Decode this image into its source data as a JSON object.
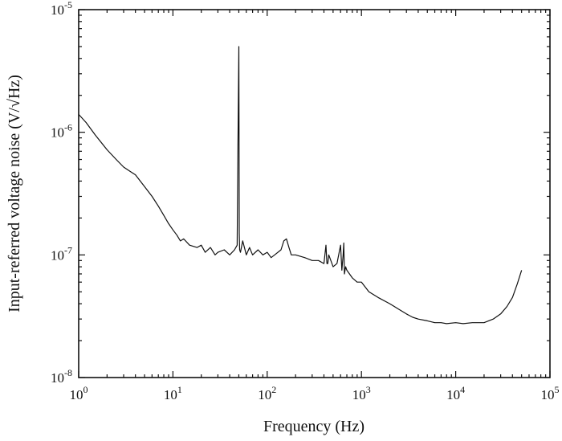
{
  "chart_data": {
    "type": "line",
    "title": "",
    "xlabel": "Frequency (Hz)",
    "ylabel": "Input-referred voltage noise (V/√Hz)",
    "xscale": "log",
    "yscale": "log",
    "xlim": [
      1,
      100000
    ],
    "ylim": [
      1e-08,
      1e-05
    ],
    "grid": false,
    "legend": "none",
    "x_ticks": [
      {
        "value": 1,
        "base": "10",
        "exp": "0"
      },
      {
        "value": 10,
        "base": "10",
        "exp": "1"
      },
      {
        "value": 100,
        "base": "10",
        "exp": "2"
      },
      {
        "value": 1000,
        "base": "10",
        "exp": "3"
      },
      {
        "value": 10000,
        "base": "10",
        "exp": "4"
      },
      {
        "value": 100000,
        "base": "10",
        "exp": "5"
      }
    ],
    "y_ticks": [
      {
        "value": 1e-08,
        "base": "10",
        "exp": "-8"
      },
      {
        "value": 1e-07,
        "base": "10",
        "exp": "-7"
      },
      {
        "value": 1e-06,
        "base": "10",
        "exp": "-6"
      },
      {
        "value": 1e-05,
        "base": "10",
        "exp": "-5"
      }
    ],
    "series": [
      {
        "x": [
          1,
          1.2,
          1.5,
          2,
          2.5,
          3,
          3.5,
          4,
          5,
          6,
          7,
          8,
          9,
          10,
          11,
          12,
          13,
          15,
          18,
          20,
          22,
          25,
          28,
          30,
          35,
          40,
          45,
          48,
          49,
          50,
          50.5,
          51,
          52,
          55,
          60,
          65,
          70,
          80,
          90,
          100,
          110,
          120,
          140,
          150,
          160,
          170,
          180,
          200,
          250,
          300,
          350,
          400,
          420,
          430,
          440,
          450,
          500,
          550,
          600,
          620,
          640,
          650,
          660,
          680,
          700,
          800,
          900,
          1000,
          1200,
          1500,
          2000,
          2500,
          3000,
          3500,
          4000,
          5000,
          6000,
          7000,
          8000,
          10000,
          12000,
          15000,
          20000,
          25000,
          30000,
          35000,
          40000,
          45000,
          50000
        ],
        "y": [
          1.4e-06,
          1.2e-06,
          9.5e-07,
          7.2e-07,
          6e-07,
          5.2e-07,
          4.8e-07,
          4.5e-07,
          3.6e-07,
          3e-07,
          2.5e-07,
          2.1e-07,
          1.8e-07,
          1.6e-07,
          1.45e-07,
          1.3e-07,
          1.35e-07,
          1.2e-07,
          1.15e-07,
          1.2e-07,
          1.05e-07,
          1.15e-07,
          1e-07,
          1.05e-07,
          1.1e-07,
          1e-07,
          1.1e-07,
          1.2e-07,
          8e-07,
          5e-06,
          1.5e-07,
          1.1e-07,
          1.05e-07,
          1.3e-07,
          1e-07,
          1.15e-07,
          1e-07,
          1.1e-07,
          1e-07,
          1.05e-07,
          9.5e-08,
          1e-07,
          1.1e-07,
          1.3e-07,
          1.35e-07,
          1.15e-07,
          1e-07,
          1e-07,
          9.5e-08,
          9e-08,
          9e-08,
          8.5e-08,
          1.2e-07,
          8.5e-08,
          8.5e-08,
          1e-07,
          8e-08,
          8.5e-08,
          1.2e-07,
          7.5e-08,
          1e-07,
          1.25e-07,
          7e-08,
          8e-08,
          7.5e-08,
          6.5e-08,
          6e-08,
          6e-08,
          5e-08,
          4.5e-08,
          4e-08,
          3.6e-08,
          3.3e-08,
          3.1e-08,
          3e-08,
          2.9e-08,
          2.8e-08,
          2.8e-08,
          2.75e-08,
          2.8e-08,
          2.75e-08,
          2.8e-08,
          2.8e-08,
          3e-08,
          3.3e-08,
          3.8e-08,
          4.5e-08,
          5.8e-08,
          7.5e-08
        ]
      }
    ]
  }
}
